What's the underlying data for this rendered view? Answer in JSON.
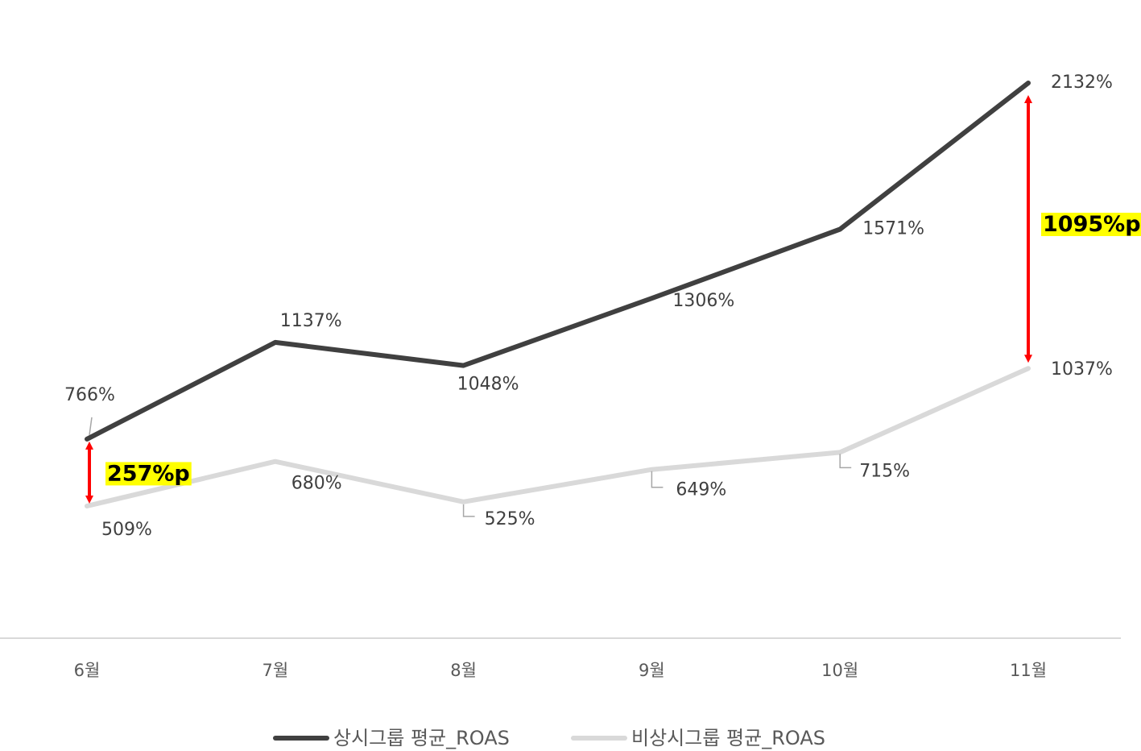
{
  "chart_data": {
    "type": "line",
    "categories": [
      "6월",
      "7월",
      "8월",
      "9월",
      "10월",
      "11월"
    ],
    "series": [
      {
        "name": "상시그룹 평균_ROAS",
        "color": "#404040",
        "values": [
          766,
          1137,
          1048,
          1306,
          1571,
          2132
        ],
        "labels": [
          "766%",
          "1137%",
          "1048%",
          "1306%",
          "1571%",
          "2132%"
        ]
      },
      {
        "name": "비상시그룹 평균_ROAS",
        "color": "#d9d9d9",
        "values": [
          509,
          680,
          525,
          649,
          715,
          1037
        ],
        "labels": [
          "509%",
          "680%",
          "525%",
          "649%",
          "715%",
          "1037%"
        ]
      }
    ],
    "annotations": [
      {
        "text": "257%p",
        "category": "6월",
        "from": 509,
        "to": 766
      },
      {
        "text": "1095%p",
        "category": "11월",
        "from": 1037,
        "to": 2132
      }
    ],
    "colors": {
      "arrow": "#ff0000",
      "highlight": "#ffff00",
      "axis": "#d9d9d9"
    },
    "ylim": [
      0,
      2400
    ],
    "grid": false,
    "legend_position": "bottom"
  }
}
